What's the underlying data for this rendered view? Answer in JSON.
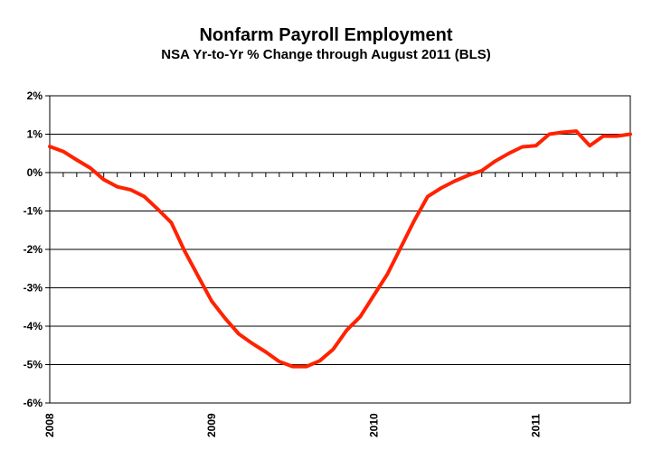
{
  "chart_data": {
    "type": "line",
    "title": "Nonfarm Payroll Employment",
    "subtitle": "NSA Yr-to-Yr % Change through August 2011 (BLS)",
    "xlabel": "",
    "ylabel": "",
    "ylim": [
      -6,
      2
    ],
    "yticks": [
      2,
      1,
      0,
      -1,
      -2,
      -3,
      -4,
      -5,
      -6
    ],
    "ytick_labels": [
      "2%",
      "1%",
      "0%",
      "-1%",
      "-2%",
      "-3%",
      "-4%",
      "-5%",
      "-6%"
    ],
    "xticks": [
      "2008",
      "2009",
      "2010",
      "2011"
    ],
    "grid": true,
    "legend": "none",
    "series": [
      {
        "color": "#ff2200",
        "x": [
          "2008-01",
          "2008-02",
          "2008-03",
          "2008-04",
          "2008-05",
          "2008-06",
          "2008-07",
          "2008-08",
          "2008-09",
          "2008-10",
          "2008-11",
          "2008-12",
          "2009-01",
          "2009-02",
          "2009-03",
          "2009-04",
          "2009-05",
          "2009-06",
          "2009-07",
          "2009-08",
          "2009-09",
          "2009-10",
          "2009-11",
          "2009-12",
          "2010-01",
          "2010-02",
          "2010-03",
          "2010-04",
          "2010-05",
          "2010-06",
          "2010-07",
          "2010-08",
          "2010-09",
          "2010-10",
          "2010-11",
          "2010-12",
          "2011-01",
          "2011-02",
          "2011-03",
          "2011-04",
          "2011-05",
          "2011-06",
          "2011-07",
          "2011-08"
        ],
        "values": [
          0.68,
          0.55,
          0.33,
          0.12,
          -0.18,
          -0.37,
          -0.45,
          -0.62,
          -0.95,
          -1.3,
          -2.05,
          -2.7,
          -3.35,
          -3.8,
          -4.2,
          -4.45,
          -4.67,
          -4.92,
          -5.05,
          -5.05,
          -4.9,
          -4.6,
          -4.1,
          -3.75,
          -3.2,
          -2.65,
          -1.95,
          -1.25,
          -0.62,
          -0.4,
          -0.22,
          -0.07,
          0.05,
          0.3,
          0.5,
          0.67,
          0.7,
          1.0,
          1.05,
          1.08,
          0.7,
          0.95,
          0.95,
          1.0
        ]
      }
    ]
  }
}
